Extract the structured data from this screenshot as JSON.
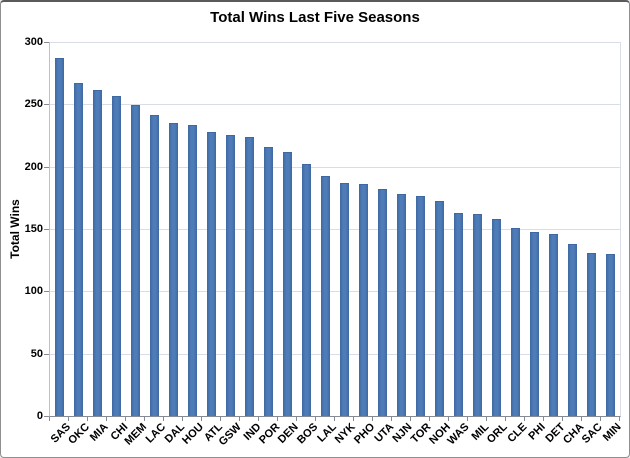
{
  "chart_data": {
    "type": "bar",
    "title": "Total Wins Last Five Seasons",
    "xlabel": "",
    "ylabel": "Total Wins",
    "ylim": [
      0,
      300
    ],
    "yticks": [
      0,
      50,
      100,
      150,
      200,
      250,
      300
    ],
    "grid": true,
    "legend_position": "none",
    "categories": [
      "SAS",
      "OKC",
      "MIA",
      "CHI",
      "MEM",
      "LAC",
      "DAL",
      "HOU",
      "ATL",
      "GSW",
      "IND",
      "POR",
      "DEN",
      "BOS",
      "LAL",
      "NYK",
      "PHO",
      "UTA",
      "NJN",
      "TOR",
      "NOH",
      "WAS",
      "MIL",
      "ORL",
      "CLE",
      "PHI",
      "DET",
      "CHA",
      "SAC",
      "MIN"
    ],
    "values": [
      286,
      266,
      261,
      256,
      249,
      241,
      234,
      233,
      227,
      225,
      223,
      215,
      211,
      201,
      192,
      186,
      185,
      181,
      177,
      176,
      172,
      162,
      161,
      157,
      150,
      147,
      145,
      137,
      130,
      129
    ],
    "colors": {
      "bar_fill": "#4e7cb8",
      "bar_edge": "#3f68a0",
      "gridline": "#d9dee6",
      "axis_line": "#848b95",
      "text": "#000000",
      "background": "#ffffff"
    }
  }
}
